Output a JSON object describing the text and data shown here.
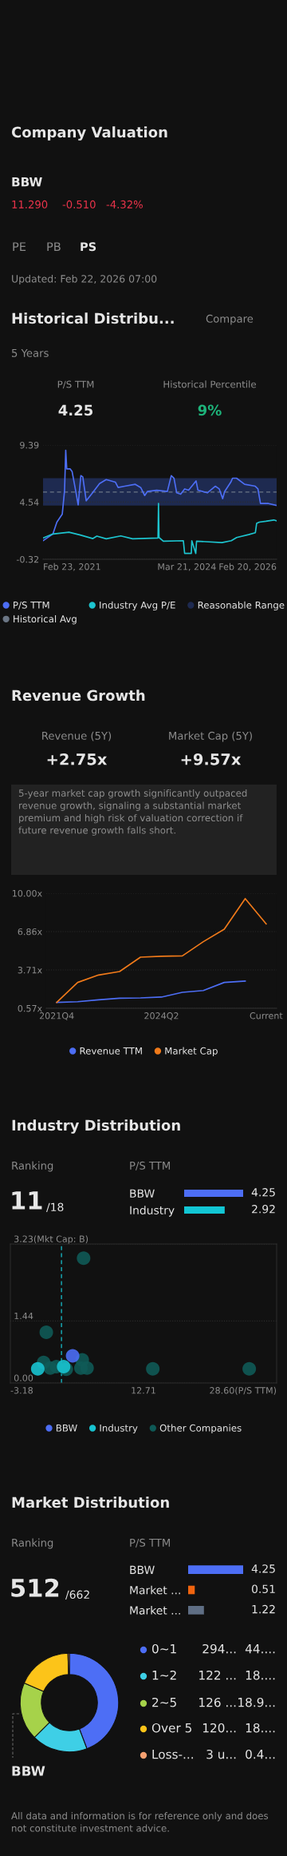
{
  "chart_data": [
    {
      "type": "other",
      "title": "Company Valuation",
      "annotations": [
        "BBW",
        "11.290",
        "-0.510",
        "-4.32%",
        "PE",
        "PB",
        "PS",
        "Updated: Feb 22, 2026 07:00"
      ]
    },
    {
      "type": "line",
      "title": "Historical Distribu...",
      "annotations": [
        "Compare",
        "5 Years",
        "P/S TTM",
        "4.25",
        "Historical Percentile",
        "9%"
      ],
      "series": [
        {
          "name": "P/S TTM",
          "color": "#4d6ef5",
          "x": [
            "2021-02-23",
            "2021-05-11",
            "2021-06-11",
            "2021-07-23",
            "2021-08-10",
            "2021-08-19",
            "2021-08-27",
            "2021-09-23",
            "2021-10-08",
            "2021-11-04",
            "2021-11-24",
            "2021-12-15",
            "2021-12-30",
            "2022-01-26",
            "2022-03-08",
            "2022-05-10",
            "2022-07-01",
            "2022-09-11",
            "2022-10-02",
            "2022-11-23",
            "2023-02-13",
            "2023-03-27",
            "2023-04-27",
            "2023-05-18",
            "2023-07-30",
            "2023-10-21",
            "2023-11-21",
            "2023-12-12",
            "2024-01-02",
            "2024-02-02",
            "2024-03-04",
            "2024-04-04",
            "2024-06-01",
            "2024-06-16",
            "2024-08-28",
            "2024-10-29",
            "2024-11-29",
            "2024-12-26",
            "2025-01-10",
            "2025-02-27",
            "2025-03-13",
            "2025-04-13",
            "2025-06-15",
            "2025-09-06",
            "2025-09-27",
            "2025-10-17",
            "2025-12-19",
            "2026-02-20"
          ],
          "values": [
            1.26,
            1.83,
            2.84,
            3.52,
            5.55,
            8.94,
            7.36,
            7.36,
            7.13,
            5.55,
            4.31,
            6.79,
            6.68,
            4.65,
            5.21,
            6.12,
            6.45,
            6.23,
            5.78,
            5.89,
            6.05,
            5.78,
            5.1,
            5.44,
            5.55,
            5.44,
            6.79,
            6.57,
            5.33,
            5.21,
            5.66,
            5.55,
            6.34,
            5.55,
            5.33,
            5.89,
            5.66,
            4.83,
            5.44,
            6.23,
            6.57,
            6.57,
            6.05,
            5.89,
            5.66,
            4.42,
            4.42,
            4.25
          ]
        },
        {
          "name": "Industry Avg P/E",
          "color": "#1dc4cf",
          "x": [
            "2021-02-23",
            "2021-05-11",
            "2021-09-13",
            "2021-12-05",
            "2022-03-19",
            "2022-04-19",
            "2022-07-01",
            "2022-10-23",
            "2023-01-23",
            "2023-08-09",
            "2023-08-13",
            "2023-08-17",
            "2023-09-20",
            "2024-02-23",
            "2024-03-04",
            "2024-04-25",
            "2024-04-29",
            "2024-05-30",
            "2024-06-05",
            "2024-12-20",
            "2025-03-03",
            "2025-04-14",
            "2025-07-16",
            "2025-09-07",
            "2025-09-17",
            "2025-10-08",
            "2025-11-28",
            "2026-01-29",
            "2026-02-20"
          ],
          "values": [
            1.49,
            1.83,
            1.98,
            1.76,
            1.44,
            1.65,
            1.42,
            1.67,
            1.42,
            1.49,
            4.42,
            1.53,
            1.22,
            1.26,
            0.18,
            0.18,
            1.26,
            0.18,
            1.22,
            1.1,
            1.26,
            1.53,
            1.78,
            1.94,
            2.73,
            2.84,
            2.91,
            3.02,
            2.95
          ]
        }
      ],
      "ref_lines": [
        {
          "axis": "y",
          "value": 5.39,
          "label": "Historical Avg",
          "color": "#6b7685",
          "line_style": "dashed"
        }
      ],
      "bands": [
        {
          "axis": "y",
          "from": 4.24,
          "to": 6.57,
          "label": "Reasonable Range",
          "color": "#1e2a50"
        }
      ],
      "xlim": [
        "2021-02-23",
        "2026-02-20"
      ],
      "xticks": [
        {
          "value": "2021-02-23",
          "label": "Feb 23, 2021"
        },
        {
          "value": "2024-03-21",
          "label": "Mar 21, 2024"
        },
        {
          "value": "2026-02-20",
          "label": "Feb 20, 2026"
        }
      ],
      "ylim": [
        -0.32,
        9.39
      ],
      "yticks": [
        -0.32,
        4.54,
        9.39
      ],
      "grid": "y",
      "legend": "bottom"
    },
    {
      "type": "line",
      "title": "Revenue Growth",
      "annotations": [
        "Revenue (5Y)",
        "+2.75x",
        "Market Cap (5Y)",
        "+9.57x",
        "5-year market cap growth significantly outpaced revenue growth, signaling a substantial market premium and high risk of valuation correction if future revenue growth falls short."
      ],
      "categories": [
        "2021Q4",
        null,
        null,
        null,
        null,
        "2024Q2",
        null,
        null,
        null,
        null,
        "Current"
      ],
      "series": [
        {
          "name": "Revenue TTM",
          "color": "#4d6ef5",
          "values": [
            1.05,
            1.11,
            1.27,
            1.4,
            1.42,
            1.49,
            1.88,
            2.03,
            2.69,
            2.8,
            null
          ]
        },
        {
          "name": "Market Cap",
          "color": "#f07a1a",
          "values": [
            1.05,
            2.69,
            3.3,
            3.58,
            4.76,
            4.83,
            4.87,
            6.03,
            7.05,
            9.56,
            7.49
          ]
        }
      ],
      "ylim": [
        0.57,
        10.0
      ],
      "yticks": [
        {
          "value": 0.57,
          "label": "0.57x"
        },
        {
          "value": 3.71,
          "label": "3.71x"
        },
        {
          "value": 6.86,
          "label": "6.86x"
        },
        {
          "value": 10.0,
          "label": "10.00x"
        }
      ],
      "grid": "y",
      "legend": "bottom"
    },
    {
      "type": "bar",
      "orientation": "horizontal",
      "title": "Industry Distribution",
      "annotations": [
        "Ranking",
        "11",
        "/18",
        "P/S TTM"
      ],
      "categories": [
        "BBW",
        "Industry"
      ],
      "values": [
        4.25,
        2.92
      ],
      "colors": [
        "#4d6ef5",
        "#12c6d4"
      ],
      "data_labels": true
    },
    {
      "type": "scatter",
      "series": [
        {
          "name": "BBW",
          "color": "#4d6ef5",
          "x": [
            4.25
          ],
          "values": [
            0.63
          ]
        },
        {
          "name": "Industry",
          "color": "#18c3d0",
          "x": [
            0.09,
            3.18
          ],
          "values": [
            0.33,
            0.38
          ]
        },
        {
          "name": "Other Companies",
          "color": "#0f5a57",
          "x": [
            5.56,
            1.11,
            0.79,
            1.59,
            2.32,
            3.49,
            5.4,
            5.24,
            5.97,
            13.82,
            25.33
          ],
          "values": [
            2.9,
            1.18,
            0.48,
            0.35,
            0.38,
            0.32,
            0.54,
            0.35,
            0.35,
            0.33,
            0.33
          ]
        }
      ],
      "ref_lines": [
        {
          "axis": "x",
          "value": 2.92,
          "color": "#18c3d0",
          "line_style": "dashed"
        }
      ],
      "xlim": [
        -3.18,
        28.6
      ],
      "xticks": [
        -3.18,
        12.71,
        {
          "value": 28.6,
          "label": "28.60(P/S TTM)"
        }
      ],
      "ylim": [
        0,
        3.23
      ],
      "yticks": [
        {
          "value": 0,
          "label": "0.00"
        },
        1.44,
        {
          "value": 3.23,
          "label": "3.23(Mkt Cap: B)"
        }
      ],
      "grid": "y",
      "legend": "bottom"
    },
    {
      "type": "bar",
      "orientation": "horizontal",
      "title": "Market Distribution",
      "annotations": [
        "Ranking",
        "512",
        "/662",
        "P/S TTM"
      ],
      "categories": [
        "BBW",
        "Market ...",
        "Market ..."
      ],
      "values": [
        4.25,
        0.51,
        1.22
      ],
      "colors": [
        "#4d6ef5",
        "#f0640f",
        "#5f6e84"
      ],
      "data_labels": true
    },
    {
      "type": "donut",
      "categories": [
        "0~1",
        "1~2",
        "2~5",
        "Over 5",
        "Loss-..."
      ],
      "values": [
        44.2,
        18.35,
        18.95,
        18.05,
        0.45
      ],
      "colors": [
        "#4d6ef5",
        "#3ecfe6",
        "#a6d24a",
        "#fcc419",
        "#f4a070"
      ],
      "value_labels": [
        "44....",
        "18....",
        "18.9...",
        "18....",
        "0.4..."
      ],
      "legend": "right",
      "annotations": [
        "294...",
        "122 ...",
        "126 ...",
        "120...",
        "3 u...",
        "BBW",
        "All data and information is for reference only and does not constitute investment advice."
      ]
    }
  ]
}
